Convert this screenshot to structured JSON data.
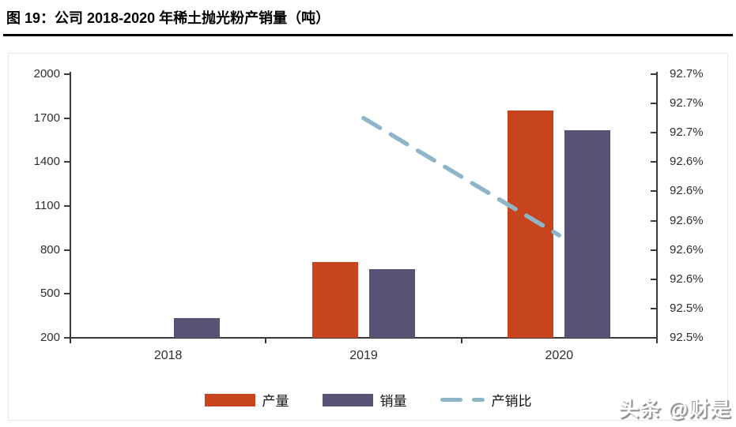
{
  "figure": {
    "title": "图 19：公司 2018-2020 年稀土抛光粉产销量（吨）",
    "watermark": "头条 @财是"
  },
  "colors": {
    "production_bar": "#c7441f",
    "sales_bar": "#585374",
    "ratio_line": "#8fb5c9",
    "axis_text": "#2f2f2f",
    "axis_line": "#3a3a3a",
    "title_rule": "#000000",
    "panel_border": "#e9e9e9"
  },
  "chart_data": {
    "type": "bar",
    "title": "图 19：公司 2018-2020 年稀土抛光粉产销量（吨）",
    "categories": [
      "2018",
      "2019",
      "2020"
    ],
    "series": [
      {
        "name": "产量",
        "type": "bar",
        "color": "#c7441f",
        "axis": "left",
        "values": [
          null,
          720,
          1750
        ]
      },
      {
        "name": "销量",
        "type": "bar",
        "color": "#585374",
        "axis": "left",
        "values": [
          335,
          667,
          1620
        ]
      },
      {
        "name": "产销比",
        "type": "line",
        "line_style": "dashed",
        "color": "#8fb5c9",
        "axis": "right",
        "values_percent": [
          null,
          92.67,
          92.59
        ]
      }
    ],
    "left_axis": {
      "min": 200,
      "max": 2000,
      "step": 300,
      "tick_labels_top_to_bottom": [
        "2000",
        "1700",
        "1400",
        "1100",
        "800",
        "500",
        "200"
      ]
    },
    "right_axis": {
      "min": 92.52,
      "max": 92.7,
      "unit": "%",
      "tick_labels_top_to_bottom": [
        "92.7%",
        "92.7%",
        "92.7%",
        "92.6%",
        "92.6%",
        "92.6%",
        "92.6%",
        "92.6%",
        "92.5%",
        "92.5%"
      ]
    },
    "legend": [
      "产量",
      "销量",
      "产销比"
    ],
    "legend_position": "bottom",
    "grid": false
  }
}
